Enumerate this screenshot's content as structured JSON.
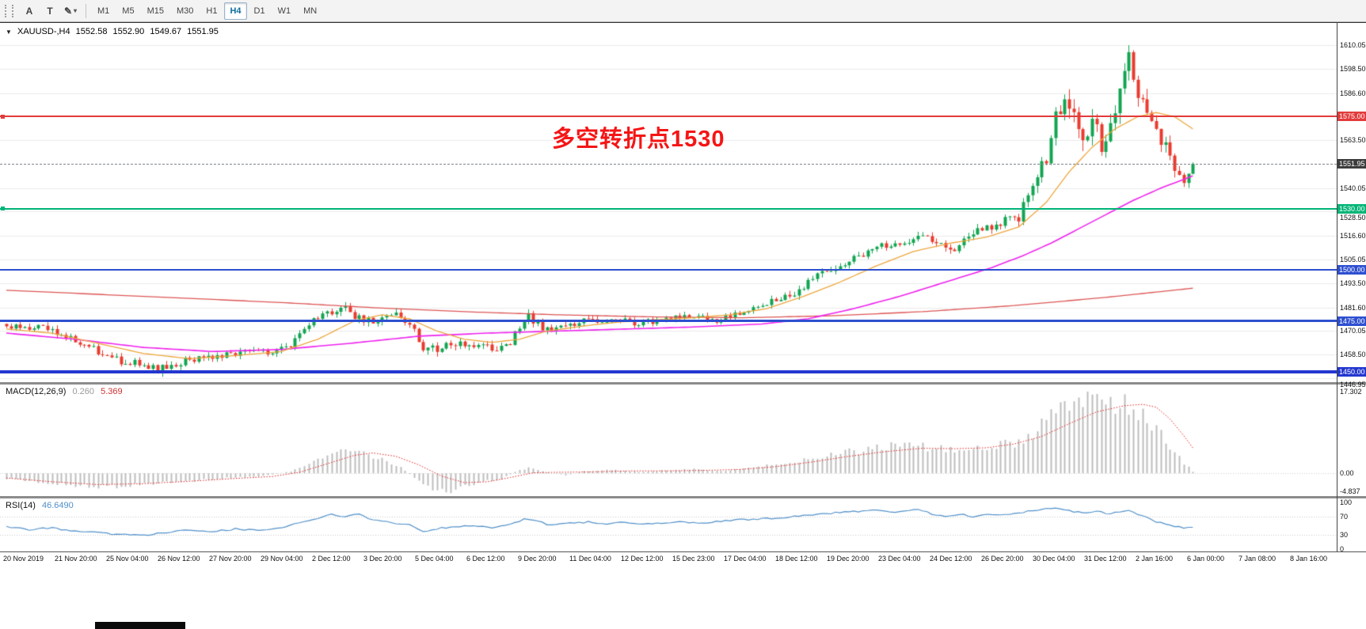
{
  "toolbar": {
    "tools": [
      {
        "label": "A"
      },
      {
        "label": "T"
      }
    ],
    "icons": {
      "brush": "✎",
      "caret": "▾"
    },
    "timeframes": [
      "M1",
      "M5",
      "M15",
      "M30",
      "H1",
      "H4",
      "D1",
      "W1",
      "MN"
    ],
    "active_timeframe": "H4"
  },
  "chart": {
    "symbol": "XAUUSD-,H4",
    "collapse_icon": "▼",
    "ohlc": {
      "open": "1552.58",
      "high": "1552.90",
      "low": "1549.67",
      "close": "1551.95"
    },
    "annotation": {
      "text": "多空转折点1530",
      "color": "#f51515"
    },
    "current_price": {
      "value": 1551.95,
      "label": "1551.95"
    },
    "hlines": [
      {
        "price": 1575.0,
        "color": "#e23b3b",
        "width": 2,
        "handle": true
      },
      {
        "price": 1530.0,
        "color": "#00b476",
        "width": 2,
        "handle": true
      },
      {
        "price": 1500.0,
        "color": "#2e4fd0",
        "width": 2,
        "handle": false
      },
      {
        "price": 1475.0,
        "color": "#2e4fd0",
        "width": 3,
        "handle": false
      },
      {
        "price": 1450.0,
        "color": "#2337cf",
        "width": 4,
        "handle": false
      }
    ]
  },
  "price_scale": {
    "gridline_labels": [
      "1610.05",
      "1598.50",
      "1586.60",
      "1563.50",
      "1540.05",
      "1528.50",
      "1516.60",
      "1505.05",
      "1493.50",
      "1481.60",
      "1470.05",
      "1458.50",
      "1446.95"
    ],
    "highlight_labels": [
      {
        "text": "1575.00",
        "bg": "#e23b3b"
      },
      {
        "text": "1551.95",
        "bg": "#3d3d3d"
      },
      {
        "text": "1530.00",
        "bg": "#00b476"
      },
      {
        "text": "1500.00",
        "bg": "#2e4fd0"
      },
      {
        "text": "1475.00",
        "bg": "#2e4fd0"
      },
      {
        "text": "1450.00",
        "bg": "#2337cf"
      }
    ]
  },
  "indicators": {
    "macd": {
      "label": "MACD(12,26,9)",
      "value_main": "0.260",
      "value_signal": "5.369",
      "scale": [
        {
          "text": "17.302",
          "value": 17.302
        },
        {
          "text": "0.00",
          "value": 0
        },
        {
          "text": "-4.837",
          "value": -4.837
        }
      ]
    },
    "rsi": {
      "label": "RSI(14)",
      "value": "46.6490",
      "scale": [
        {
          "text": "100",
          "value": 100
        },
        {
          "text": "70",
          "value": 70
        },
        {
          "text": "30",
          "value": 30
        },
        {
          "text": "0",
          "value": 0
        }
      ],
      "levels": [
        70,
        30
      ]
    }
  },
  "time_axis": {
    "labels": [
      "20 Nov 2019",
      "21 Nov 20:00",
      "25 Nov 04:00",
      "26 Nov 12:00",
      "27 Nov 20:00",
      "29 Nov 04:00",
      "2 Dec 12:00",
      "3 Dec 20:00",
      "5 Dec 04:00",
      "6 Dec 12:00",
      "9 Dec 20:00",
      "11 Dec 04:00",
      "12 Dec 12:00",
      "15 Dec 23:00",
      "17 Dec 04:00",
      "18 Dec 12:00",
      "19 Dec 20:00",
      "23 Dec 04:00",
      "24 Dec 12:00",
      "26 Dec 20:00",
      "30 Dec 04:00",
      "31 Dec 12:00",
      "2 Jan 16:00",
      "6 Jan 00:00",
      "7 Jan 08:00",
      "8 Jan 16:00"
    ]
  },
  "colors": {
    "bull": "#12a552",
    "bear": "#ea3b2e",
    "ma_fast": "#eda63e",
    "ma_mid": "#ee22ee",
    "ma_slow": "#dd5555",
    "macd_hist": "#bdbdbd",
    "macd_signal": "#e02020",
    "rsi_line": "#4f8fc9",
    "grid": "#ebebeb"
  },
  "chart_data": {
    "type": "candlestick",
    "symbol": "XAUUSD",
    "timeframe": "H4",
    "bars": 260,
    "price_range": [
      1445,
      1620.5
    ],
    "last_close": 1551.95,
    "peak": {
      "bar": 245,
      "high": 1610.0
    },
    "trough": {
      "bar": 33,
      "low": 1449.2
    },
    "close_anchors": [
      [
        0,
        1473
      ],
      [
        8,
        1471
      ],
      [
        16,
        1465
      ],
      [
        24,
        1456
      ],
      [
        30,
        1453
      ],
      [
        33,
        1451.5
      ],
      [
        38,
        1455
      ],
      [
        44,
        1458
      ],
      [
        52,
        1459
      ],
      [
        58,
        1460
      ],
      [
        62,
        1463
      ],
      [
        66,
        1474
      ],
      [
        70,
        1479
      ],
      [
        73,
        1482
      ],
      [
        77,
        1476
      ],
      [
        81,
        1474
      ],
      [
        85,
        1477
      ],
      [
        89,
        1471
      ],
      [
        91,
        1459
      ],
      [
        93,
        1461
      ],
      [
        97,
        1463
      ],
      [
        102,
        1464
      ],
      [
        107,
        1462
      ],
      [
        110,
        1465
      ],
      [
        112,
        1471
      ],
      [
        114,
        1477
      ],
      [
        117,
        1472
      ],
      [
        119,
        1469
      ],
      [
        121,
        1473
      ],
      [
        126,
        1475
      ],
      [
        132,
        1476
      ],
      [
        138,
        1474
      ],
      [
        144,
        1476
      ],
      [
        150,
        1477
      ],
      [
        155,
        1475
      ],
      [
        160,
        1479
      ],
      [
        164,
        1483
      ],
      [
        168,
        1485
      ],
      [
        172,
        1489
      ],
      [
        176,
        1496
      ],
      [
        180,
        1500
      ],
      [
        184,
        1504
      ],
      [
        188,
        1509
      ],
      [
        192,
        1512
      ],
      [
        196,
        1514
      ],
      [
        200,
        1516
      ],
      [
        204,
        1513
      ],
      [
        207,
        1511
      ],
      [
        210,
        1517
      ],
      [
        214,
        1521
      ],
      [
        218,
        1524
      ],
      [
        221,
        1526
      ],
      [
        224,
        1544
      ],
      [
        227,
        1552
      ],
      [
        229,
        1574
      ],
      [
        231,
        1582
      ],
      [
        233,
        1576
      ],
      [
        235,
        1566
      ],
      [
        237,
        1572
      ],
      [
        239,
        1562
      ],
      [
        241,
        1571
      ],
      [
        243,
        1589
      ],
      [
        245,
        1601
      ],
      [
        247,
        1586
      ],
      [
        249,
        1577
      ],
      [
        251,
        1567
      ],
      [
        253,
        1559
      ],
      [
        255,
        1550
      ],
      [
        257,
        1545
      ],
      [
        259,
        1552
      ]
    ],
    "range_anchors": [
      [
        0,
        4
      ],
      [
        30,
        4.5
      ],
      [
        60,
        3.5
      ],
      [
        90,
        5
      ],
      [
        120,
        4
      ],
      [
        160,
        3
      ],
      [
        175,
        4.5
      ],
      [
        200,
        4
      ],
      [
        220,
        5
      ],
      [
        226,
        9
      ],
      [
        235,
        11
      ],
      [
        245,
        13
      ],
      [
        252,
        9
      ],
      [
        259,
        7
      ]
    ],
    "ma_fast_anchors": [
      [
        0,
        1471
      ],
      [
        10,
        1469
      ],
      [
        20,
        1464
      ],
      [
        30,
        1459
      ],
      [
        40,
        1456.5
      ],
      [
        50,
        1458
      ],
      [
        60,
        1460
      ],
      [
        68,
        1466
      ],
      [
        76,
        1475
      ],
      [
        82,
        1478
      ],
      [
        88,
        1476
      ],
      [
        94,
        1470
      ],
      [
        100,
        1466
      ],
      [
        106,
        1464.5
      ],
      [
        112,
        1466
      ],
      [
        118,
        1470
      ],
      [
        126,
        1472.5
      ],
      [
        134,
        1474.5
      ],
      [
        142,
        1475.5
      ],
      [
        150,
        1476.5
      ],
      [
        158,
        1478
      ],
      [
        166,
        1481
      ],
      [
        174,
        1487
      ],
      [
        182,
        1494
      ],
      [
        190,
        1502
      ],
      [
        198,
        1509
      ],
      [
        206,
        1513
      ],
      [
        214,
        1516
      ],
      [
        221,
        1521
      ],
      [
        227,
        1533
      ],
      [
        232,
        1548
      ],
      [
        237,
        1560
      ],
      [
        242,
        1569
      ],
      [
        247,
        1575
      ],
      [
        251,
        1577
      ],
      [
        255,
        1575
      ],
      [
        259,
        1569
      ]
    ],
    "ma_mid_anchors": [
      [
        0,
        1469
      ],
      [
        15,
        1466
      ],
      [
        30,
        1462
      ],
      [
        45,
        1460
      ],
      [
        60,
        1461
      ],
      [
        75,
        1464
      ],
      [
        90,
        1467.5
      ],
      [
        105,
        1469
      ],
      [
        120,
        1470
      ],
      [
        135,
        1471
      ],
      [
        150,
        1472
      ],
      [
        165,
        1473.5
      ],
      [
        175,
        1476
      ],
      [
        185,
        1481
      ],
      [
        195,
        1487
      ],
      [
        205,
        1494
      ],
      [
        215,
        1501
      ],
      [
        222,
        1507
      ],
      [
        228,
        1513
      ],
      [
        234,
        1520
      ],
      [
        240,
        1527
      ],
      [
        246,
        1534
      ],
      [
        252,
        1540
      ],
      [
        259,
        1546
      ]
    ],
    "ma_slow_anchors": [
      [
        0,
        1490
      ],
      [
        20,
        1488
      ],
      [
        40,
        1486
      ],
      [
        60,
        1484
      ],
      [
        80,
        1481.5
      ],
      [
        100,
        1479.5
      ],
      [
        120,
        1478
      ],
      [
        140,
        1477
      ],
      [
        160,
        1476.5
      ],
      [
        180,
        1477.5
      ],
      [
        200,
        1479.5
      ],
      [
        220,
        1482.5
      ],
      [
        240,
        1486.5
      ],
      [
        259,
        1491
      ]
    ],
    "macd_range": [
      -4.837,
      18.8
    ],
    "macd_hist_anchors": [
      [
        0,
        -1.2
      ],
      [
        8,
        -2.0
      ],
      [
        16,
        -2.6
      ],
      [
        24,
        -2.9
      ],
      [
        32,
        -2.3
      ],
      [
        40,
        -1.6
      ],
      [
        48,
        -1.0
      ],
      [
        56,
        -0.6
      ],
      [
        62,
        0.4
      ],
      [
        66,
        2.2
      ],
      [
        70,
        3.6
      ],
      [
        74,
        4.6
      ],
      [
        78,
        4.2
      ],
      [
        82,
        3.0
      ],
      [
        86,
        1.2
      ],
      [
        90,
        -1.6
      ],
      [
        93,
        -3.2
      ],
      [
        96,
        -4.2
      ],
      [
        99,
        -3.0
      ],
      [
        104,
        -1.8
      ],
      [
        108,
        -1.2
      ],
      [
        111,
        0.3
      ],
      [
        114,
        1.2
      ],
      [
        118,
        0.2
      ],
      [
        122,
        -0.4
      ],
      [
        126,
        0.4
      ],
      [
        132,
        0.8
      ],
      [
        138,
        0.3
      ],
      [
        144,
        0.6
      ],
      [
        150,
        0.9
      ],
      [
        156,
        0.5
      ],
      [
        162,
        1.2
      ],
      [
        168,
        1.8
      ],
      [
        174,
        2.8
      ],
      [
        180,
        3.8
      ],
      [
        186,
        4.8
      ],
      [
        192,
        5.6
      ],
      [
        198,
        6.0
      ],
      [
        203,
        5.2
      ],
      [
        208,
        4.6
      ],
      [
        212,
        5.2
      ],
      [
        217,
        6.0
      ],
      [
        222,
        7.0
      ],
      [
        226,
        10.0
      ],
      [
        230,
        14.5
      ],
      [
        234,
        17.0
      ],
      [
        237,
        16.0
      ],
      [
        240,
        14.5
      ],
      [
        243,
        15.5
      ],
      [
        246,
        14.0
      ],
      [
        249,
        11.5
      ],
      [
        252,
        8.0
      ],
      [
        255,
        4.5
      ],
      [
        257,
        2.2
      ],
      [
        259,
        0.26
      ]
    ],
    "macd_signal_anchors": [
      [
        0,
        -1.0
      ],
      [
        10,
        -1.8
      ],
      [
        20,
        -2.4
      ],
      [
        30,
        -2.2
      ],
      [
        40,
        -1.7
      ],
      [
        50,
        -1.1
      ],
      [
        58,
        -0.7
      ],
      [
        64,
        0.2
      ],
      [
        70,
        2.0
      ],
      [
        76,
        3.8
      ],
      [
        80,
        4.3
      ],
      [
        85,
        3.6
      ],
      [
        90,
        1.8
      ],
      [
        95,
        -0.6
      ],
      [
        100,
        -2.0
      ],
      [
        105,
        -1.8
      ],
      [
        110,
        -0.9
      ],
      [
        115,
        0.1
      ],
      [
        120,
        0.2
      ],
      [
        128,
        0.3
      ],
      [
        136,
        0.5
      ],
      [
        144,
        0.5
      ],
      [
        152,
        0.6
      ],
      [
        160,
        0.8
      ],
      [
        168,
        1.4
      ],
      [
        176,
        2.4
      ],
      [
        184,
        3.6
      ],
      [
        192,
        4.6
      ],
      [
        200,
        5.3
      ],
      [
        207,
        5.2
      ],
      [
        214,
        5.4
      ],
      [
        220,
        6.2
      ],
      [
        226,
        7.8
      ],
      [
        232,
        10.5
      ],
      [
        238,
        13.0
      ],
      [
        244,
        14.3
      ],
      [
        248,
        14.6
      ],
      [
        251,
        14.0
      ],
      [
        254,
        11.5
      ],
      [
        257,
        8.0
      ],
      [
        259,
        5.369
      ]
    ],
    "rsi_last": 46.649,
    "rsi_anchors": [
      [
        0,
        48
      ],
      [
        5,
        42
      ],
      [
        10,
        45
      ],
      [
        15,
        38
      ],
      [
        20,
        35
      ],
      [
        25,
        31
      ],
      [
        30,
        29
      ],
      [
        35,
        36
      ],
      [
        40,
        41
      ],
      [
        45,
        38
      ],
      [
        50,
        43
      ],
      [
        55,
        40
      ],
      [
        60,
        46
      ],
      [
        64,
        56
      ],
      [
        68,
        66
      ],
      [
        71,
        74
      ],
      [
        74,
        70
      ],
      [
        77,
        76
      ],
      [
        80,
        62
      ],
      [
        84,
        57
      ],
      [
        88,
        52
      ],
      [
        91,
        37
      ],
      [
        94,
        44
      ],
      [
        98,
        48
      ],
      [
        102,
        50
      ],
      [
        106,
        45
      ],
      [
        110,
        53
      ],
      [
        113,
        64
      ],
      [
        116,
        59
      ],
      [
        119,
        51
      ],
      [
        123,
        55
      ],
      [
        127,
        58
      ],
      [
        131,
        54
      ],
      [
        135,
        57
      ],
      [
        139,
        53
      ],
      [
        143,
        56
      ],
      [
        147,
        58
      ],
      [
        151,
        55
      ],
      [
        155,
        59
      ],
      [
        159,
        62
      ],
      [
        163,
        64
      ],
      [
        167,
        66
      ],
      [
        171,
        69
      ],
      [
        175,
        73
      ],
      [
        179,
        76
      ],
      [
        183,
        79
      ],
      [
        187,
        81
      ],
      [
        190,
        83
      ],
      [
        193,
        78
      ],
      [
        196,
        81
      ],
      [
        199,
        84
      ],
      [
        202,
        76
      ],
      [
        205,
        70
      ],
      [
        208,
        75
      ],
      [
        211,
        70
      ],
      [
        214,
        75
      ],
      [
        217,
        72
      ],
      [
        220,
        76
      ],
      [
        223,
        81
      ],
      [
        226,
        85
      ],
      [
        229,
        87
      ],
      [
        232,
        82
      ],
      [
        235,
        78
      ],
      [
        238,
        81
      ],
      [
        241,
        75
      ],
      [
        243,
        80
      ],
      [
        245,
        84
      ],
      [
        247,
        75
      ],
      [
        249,
        67
      ],
      [
        251,
        59
      ],
      [
        253,
        54
      ],
      [
        255,
        50
      ],
      [
        257,
        46
      ],
      [
        259,
        46.65
      ]
    ]
  }
}
